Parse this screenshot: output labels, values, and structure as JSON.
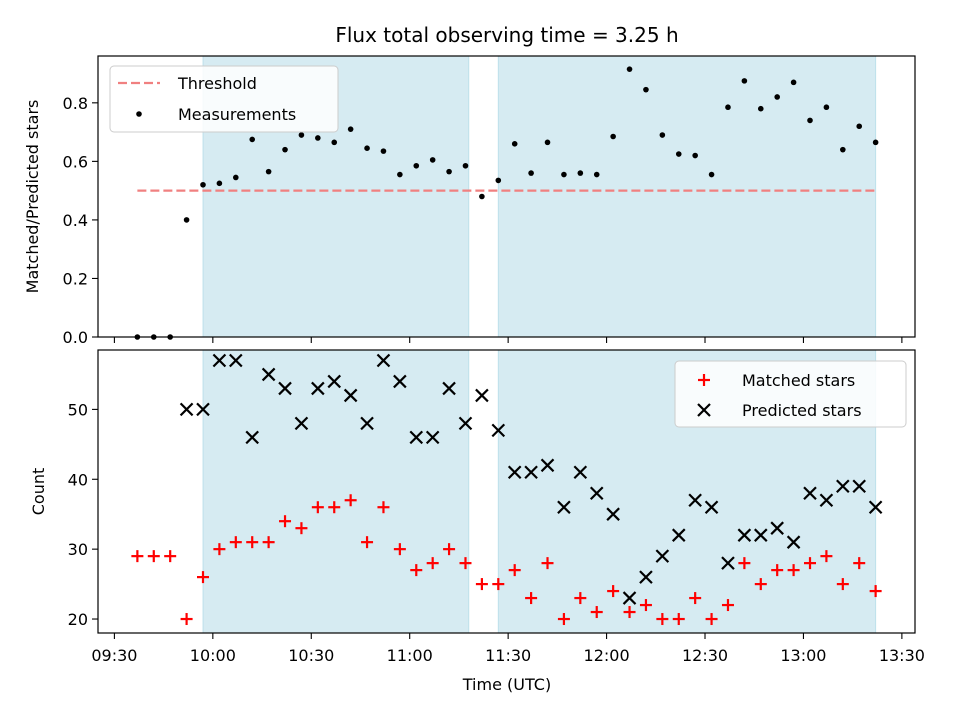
{
  "chart_data": {
    "type": "scatter",
    "title": "Flux total observing time = 3.25 h",
    "xlabel": "Time (UTC)",
    "x_ticks": [
      "09:30",
      "10:00",
      "10:30",
      "11:00",
      "11:30",
      "12:00",
      "12:30",
      "13:00",
      "13:30"
    ],
    "x_range": [
      "09:25",
      "13:34"
    ],
    "shaded_intervals": [
      [
        "09:57",
        "11:18"
      ],
      [
        "11:27",
        "13:22"
      ]
    ],
    "shade_color": "#add8e6",
    "top_panel": {
      "ylabel": "Matched/Predicted stars",
      "ylim": [
        0,
        0.96
      ],
      "y_ticks": [
        "0.0",
        "0.2",
        "0.4",
        "0.6",
        "0.8"
      ],
      "legend_position": "upper-left",
      "threshold": {
        "name": "Threshold",
        "value": 0.5,
        "x_start": "09:37",
        "x_end": "13:22",
        "color": "#f08080"
      },
      "measurements": {
        "name": "Measurements",
        "color": "#000000",
        "times": [
          "09:37",
          "09:42",
          "09:47",
          "09:52",
          "09:57",
          "10:02",
          "10:07",
          "10:12",
          "10:17",
          "10:22",
          "10:27",
          "10:32",
          "10:37",
          "10:42",
          "10:47",
          "10:52",
          "10:57",
          "11:02",
          "11:07",
          "11:12",
          "11:17",
          "11:22",
          "11:27",
          "11:32",
          "11:37",
          "11:42",
          "11:47",
          "11:52",
          "11:57",
          "12:02",
          "12:07",
          "12:12",
          "12:17",
          "12:22",
          "12:27",
          "12:32",
          "12:37",
          "12:42",
          "12:47",
          "12:52",
          "12:57",
          "13:02",
          "13:07",
          "13:12",
          "13:17",
          "13:22"
        ],
        "values": [
          0.0,
          0.0,
          0.0,
          0.4,
          0.52,
          0.525,
          0.545,
          0.675,
          0.565,
          0.64,
          0.69,
          0.68,
          0.665,
          0.71,
          0.645,
          0.635,
          0.555,
          0.585,
          0.605,
          0.565,
          0.585,
          0.48,
          0.535,
          0.66,
          0.56,
          0.665,
          0.555,
          0.56,
          0.555,
          0.685,
          0.915,
          0.845,
          0.69,
          0.625,
          0.62,
          0.555,
          0.785,
          0.875,
          0.78,
          0.82,
          0.87,
          0.74,
          0.785,
          0.64,
          0.72,
          0.665
        ]
      }
    },
    "bottom_panel": {
      "ylabel": "Count",
      "ylim": [
        18,
        58.5
      ],
      "y_ticks": [
        "20",
        "30",
        "40",
        "50"
      ],
      "legend_position": "upper-right",
      "series": [
        {
          "name": "Matched stars",
          "marker": "plus",
          "color": "#ff0000",
          "times": [
            "09:37",
            "09:42",
            "09:47",
            "09:52",
            "09:57",
            "10:02",
            "10:07",
            "10:12",
            "10:17",
            "10:22",
            "10:27",
            "10:32",
            "10:37",
            "10:42",
            "10:47",
            "10:52",
            "10:57",
            "11:02",
            "11:07",
            "11:12",
            "11:17",
            "11:22",
            "11:27",
            "11:32",
            "11:37",
            "11:42",
            "11:47",
            "11:52",
            "11:57",
            "12:02",
            "12:07",
            "12:12",
            "12:17",
            "12:22",
            "12:27",
            "12:32",
            "12:37",
            "12:42",
            "12:47",
            "12:52",
            "12:57",
            "13:02",
            "13:07",
            "13:12",
            "13:17",
            "13:22"
          ],
          "values": [
            29,
            29,
            29,
            20,
            26,
            30,
            31,
            31,
            31,
            34,
            33,
            36,
            36,
            37,
            31,
            36,
            30,
            27,
            28,
            30,
            28,
            25,
            25,
            27,
            23,
            28,
            20,
            23,
            21,
            24,
            21,
            22,
            20,
            20,
            23,
            20,
            22,
            28,
            25,
            27,
            27,
            28,
            29,
            25,
            28,
            24
          ]
        },
        {
          "name": "Predicted stars",
          "marker": "x",
          "color": "#000000",
          "times": [
            "09:52",
            "09:57",
            "10:02",
            "10:07",
            "10:12",
            "10:17",
            "10:22",
            "10:27",
            "10:32",
            "10:37",
            "10:42",
            "10:47",
            "10:52",
            "10:57",
            "11:02",
            "11:07",
            "11:12",
            "11:17",
            "11:22",
            "11:27",
            "11:32",
            "11:37",
            "11:42",
            "11:47",
            "11:52",
            "11:57",
            "12:02",
            "12:07",
            "12:12",
            "12:17",
            "12:22",
            "12:27",
            "12:32",
            "12:37",
            "12:42",
            "12:47",
            "12:52",
            "12:57",
            "13:02",
            "13:07",
            "13:12",
            "13:17",
            "13:22"
          ],
          "values": [
            50,
            50,
            57,
            57,
            46,
            55,
            53,
            48,
            53,
            54,
            52,
            48,
            57,
            54,
            46,
            46,
            53,
            48,
            52,
            47,
            41,
            41,
            42,
            36,
            41,
            38,
            35,
            23,
            26,
            29,
            32,
            37,
            36,
            28,
            32,
            32,
            33,
            31,
            38,
            37,
            39,
            39,
            36
          ]
        }
      ]
    }
  }
}
